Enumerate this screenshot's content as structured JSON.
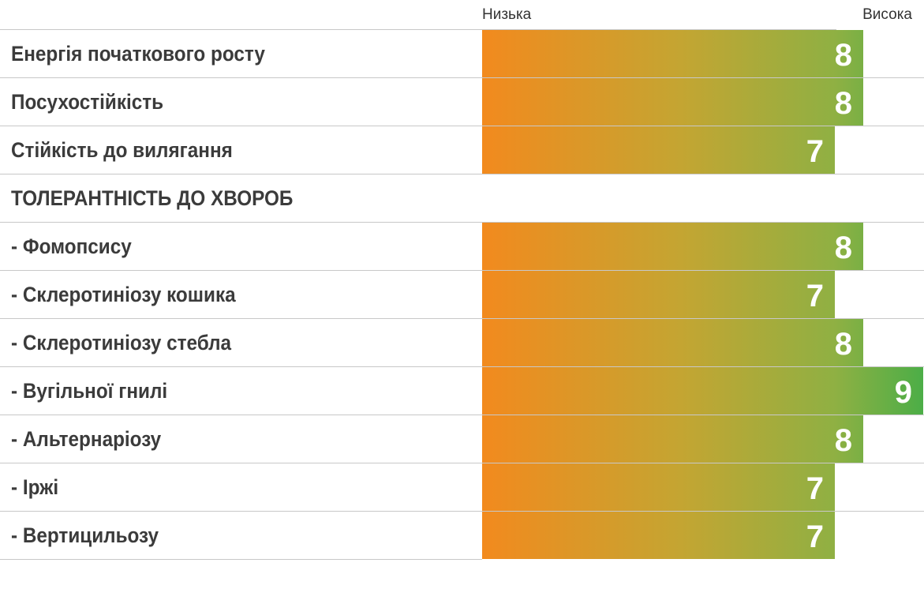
{
  "chart_data": {
    "type": "bar",
    "orientation": "horizontal",
    "scale_labels": {
      "low": "Низька",
      "high": "Висока"
    },
    "xlim": [
      0,
      9
    ],
    "grid": false,
    "rows": [
      {
        "label": "Енергія початкового росту",
        "value": 8
      },
      {
        "label": "Посухостійкість",
        "value": 8
      },
      {
        "label": "Стійкість до вилягання",
        "value": 7
      },
      {
        "label": "ТОЛЕРАНТНІСТЬ ДО ХВОРОБ",
        "value": null
      },
      {
        "label": "- Фомопсису",
        "value": 8
      },
      {
        "label": "- Склеротиніозу кошика",
        "value": 7
      },
      {
        "label": "- Склеротиніозу стебла",
        "value": 8
      },
      {
        "label": "- Вугільної гнилі",
        "value": 9
      },
      {
        "label": "- Альтернаріозу",
        "value": 8
      },
      {
        "label": "- Іржі",
        "value": 7
      },
      {
        "label": "- Вертицильозу",
        "value": 7
      }
    ]
  }
}
